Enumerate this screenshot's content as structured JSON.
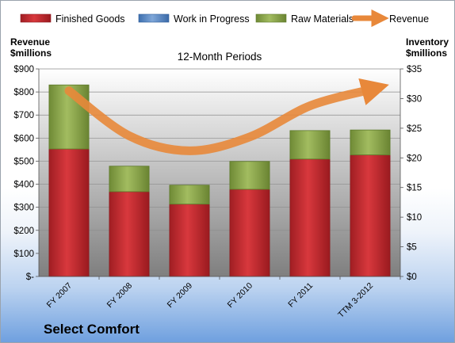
{
  "chart_data": {
    "type": "bar",
    "title": "12-Month Periods",
    "categories": [
      "FY 2007",
      "FY 2008",
      "FY 2009",
      "FY 2010",
      "FY 2011",
      "TTM 3-2012"
    ],
    "series": [
      {
        "name": "Finished Goods",
        "axis": "right",
        "color": "#c0262c",
        "values": [
          21.5,
          14.3,
          12.2,
          14.7,
          19.8,
          20.5
        ]
      },
      {
        "name": "Work in Progress",
        "axis": "right",
        "color": "#4f81bd",
        "values": [
          0,
          0,
          0,
          0,
          0,
          0
        ]
      },
      {
        "name": "Raw Materials",
        "axis": "right",
        "color": "#8fa84e",
        "values": [
          10.8,
          4.3,
          3.2,
          4.7,
          4.8,
          4.2
        ]
      },
      {
        "name": "Revenue",
        "axis": "left",
        "type": "line",
        "color": "#e8883a",
        "values": [
          805,
          610,
          545,
          605,
          740,
          810
        ]
      }
    ],
    "left_axis": {
      "label_line1": "Revenue",
      "label_line2": "$millions",
      "ylim": [
        0,
        900
      ],
      "ticks": [
        "$-",
        "$100",
        "$200",
        "$300",
        "$400",
        "$500",
        "$600",
        "$700",
        "$800",
        "$900"
      ]
    },
    "right_axis": {
      "label_line1": "Inventory",
      "label_line2": "$millions",
      "ylim": [
        0,
        35
      ],
      "ticks": [
        "$0",
        "$5",
        "$10",
        "$15",
        "$20",
        "$25",
        "$30",
        "$35"
      ]
    },
    "legend_position": "top",
    "grid": true
  },
  "company": "Select Comfort"
}
